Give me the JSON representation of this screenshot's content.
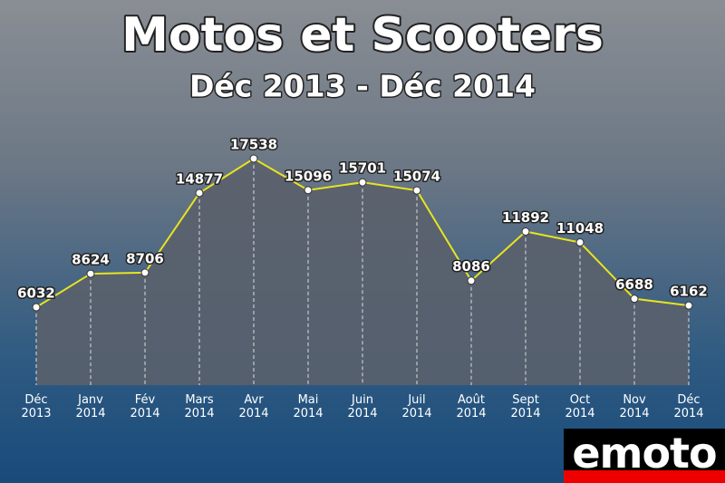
{
  "chart_data": {
    "type": "line",
    "title": "Motos et Scooters",
    "subtitle": "Déc 2013 - Déc 2014",
    "categories": [
      "Déc 2013",
      "Janv 2014",
      "Fév 2014",
      "Mars 2014",
      "Avr 2014",
      "Mai 2014",
      "Juin 2014",
      "Juil 2014",
      "Août 2014",
      "Sept 2014",
      "Oct 2014",
      "Nov 2014",
      "Déc 2014"
    ],
    "values": [
      6032,
      8624,
      8706,
      14877,
      17538,
      15096,
      15701,
      15074,
      8086,
      11892,
      11048,
      6688,
      6162
    ],
    "color": "#e8e41e"
  },
  "logo": "emoto"
}
